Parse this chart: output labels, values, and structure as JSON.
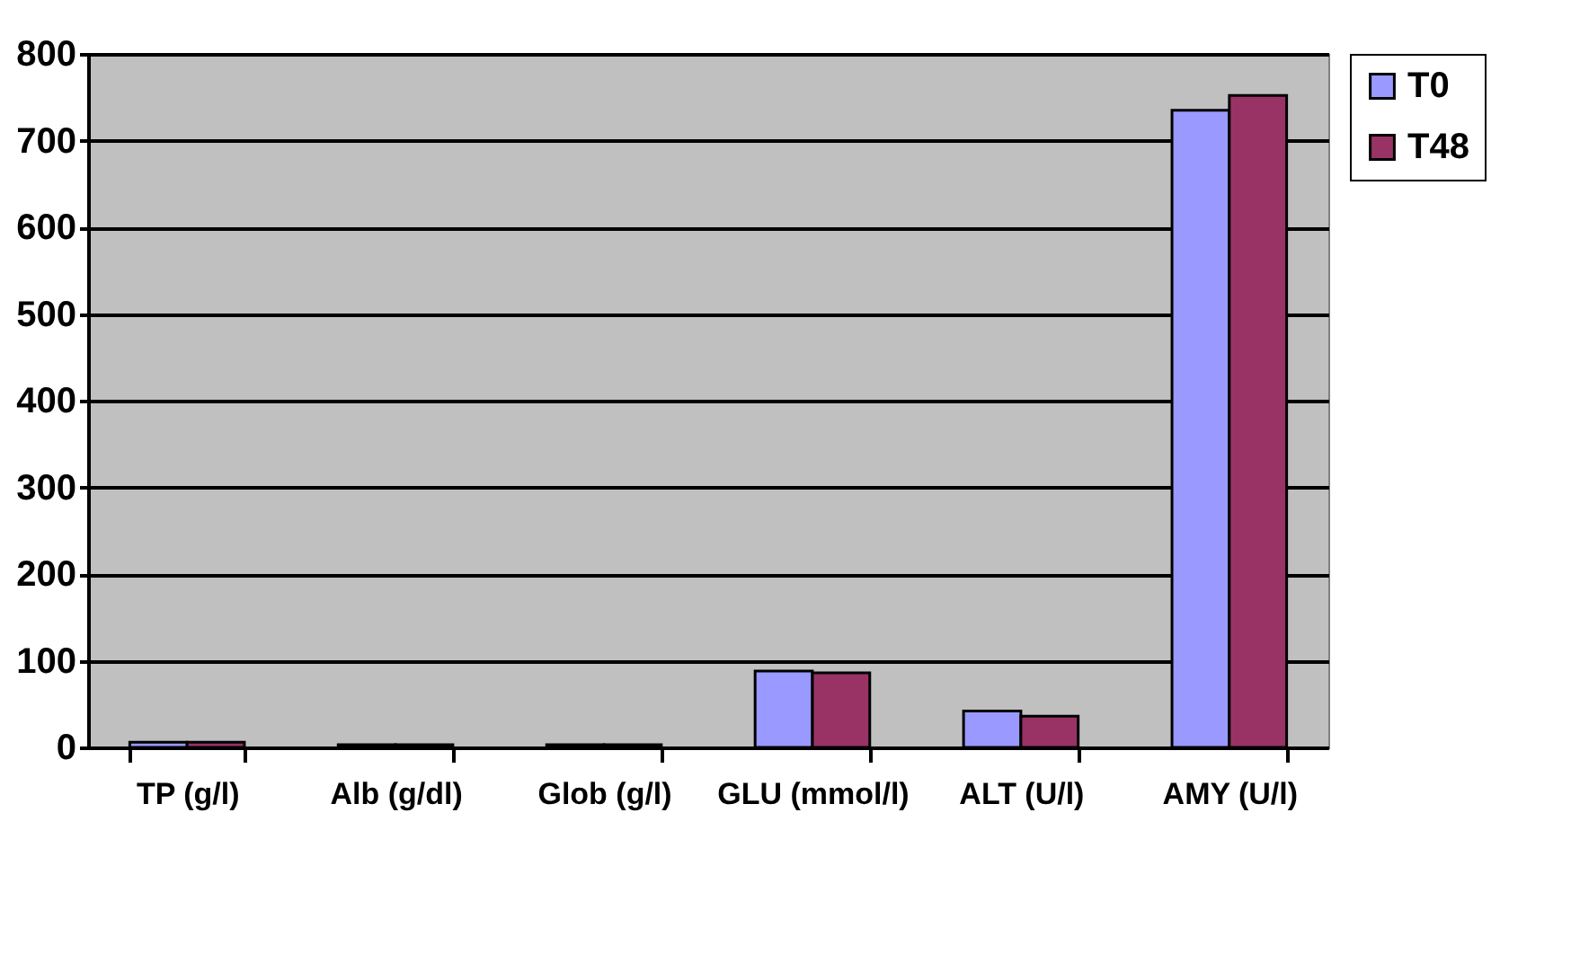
{
  "chart_data": {
    "type": "bar",
    "categories": [
      "TP (g/l)",
      "Alb (g/dl)",
      "Glob (g/l)",
      "GLU (mmol/l)",
      "ALT (U/l)",
      "AMY (U/l)"
    ],
    "series": [
      {
        "name": "T0",
        "color": "#9999ff",
        "values": [
          6,
          3,
          3,
          88,
          42,
          735
        ]
      },
      {
        "name": "T48",
        "color": "#993366",
        "values": [
          6,
          3,
          3,
          86,
          36,
          752
        ]
      }
    ],
    "ylim": [
      0,
      800
    ],
    "yticks": [
      0,
      100,
      200,
      300,
      400,
      500,
      600,
      700,
      800
    ],
    "grid": "y",
    "legend": "right"
  }
}
